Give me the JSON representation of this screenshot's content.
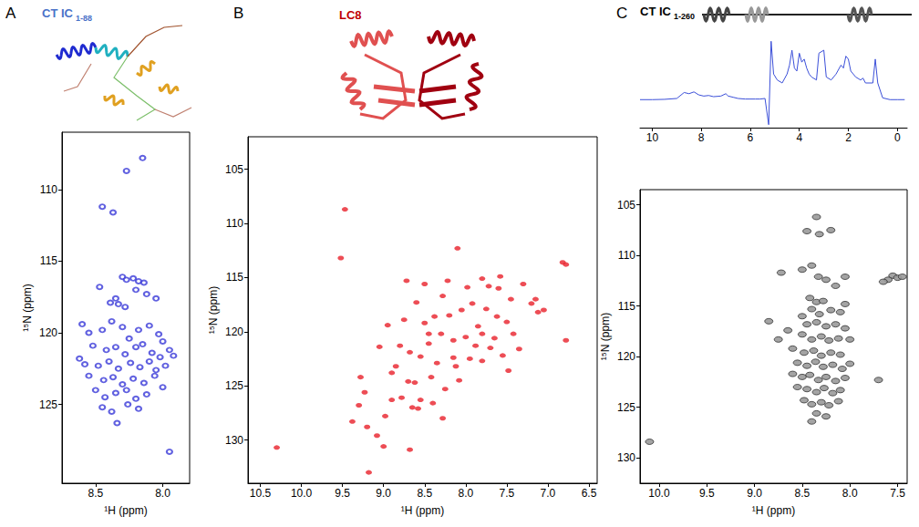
{
  "chart_data": [
    {
      "panel": "A",
      "type": "scatter",
      "title": "CT IC",
      "title_subscript": "1-88",
      "color": "#3a3ad8",
      "marker": "open_circle",
      "grid": false,
      "x_label": "¹H (ppm)",
      "y_label": "¹⁵N (ppm)",
      "xlim": [
        8.75,
        7.8
      ],
      "xticks": [
        8.5,
        {
          "value": 8,
          "label": "8.0"
        }
      ],
      "ylim": [
        130.5,
        106
      ],
      "yticks": [
        110,
        115,
        120,
        125
      ],
      "x": [
        8.15,
        8.27,
        8.45,
        8.37,
        8.3,
        8.27,
        8.22,
        8.18,
        8.14,
        8.35,
        8.33,
        8.28,
        8.39,
        8.2,
        8.12,
        8.05,
        8.47,
        8.6,
        8.55,
        8.45,
        8.38,
        8.3,
        8.25,
        8.18,
        8.1,
        8.03,
        8.0,
        7.95,
        8.52,
        8.42,
        8.35,
        8.28,
        8.2,
        8.15,
        8.08,
        8.02,
        7.92,
        8.58,
        8.48,
        8.4,
        8.33,
        8.24,
        8.17,
        8.1,
        8.05,
        7.98,
        8.55,
        8.44,
        8.37,
        8.3,
        8.22,
        8.14,
        8.06,
        8.0,
        8.5,
        8.43,
        8.35,
        8.27,
        8.2,
        8.12,
        8.45,
        8.38,
        8.26,
        8.18,
        8.34,
        7.95,
        8.62
      ],
      "values": [
        107.8,
        108.7,
        111.2,
        111.6,
        116.1,
        116.3,
        116.2,
        116.4,
        116.5,
        117.6,
        118.0,
        118.2,
        117.9,
        117.0,
        117.3,
        117.6,
        116.8,
        119.4,
        120.0,
        119.8,
        119.2,
        119.6,
        120.4,
        119.8,
        119.5,
        120.1,
        120.6,
        121.2,
        120.9,
        121.2,
        121.0,
        121.5,
        121.0,
        120.8,
        121.4,
        121.7,
        121.6,
        122.2,
        122.3,
        122.0,
        122.5,
        122.1,
        122.4,
        122.0,
        122.6,
        122.3,
        123.0,
        123.3,
        123.1,
        123.6,
        123.2,
        123.5,
        123.0,
        123.8,
        124.0,
        124.5,
        124.2,
        124.0,
        124.6,
        124.3,
        125.2,
        125.5,
        125.0,
        125.3,
        126.3,
        128.3,
        121.8
      ]
    },
    {
      "panel": "B",
      "type": "scatter",
      "title": "LC8",
      "color": "#e8202a",
      "marker": "circle",
      "grid": false,
      "x_label": "¹H (ppm)",
      "y_label": "¹⁵N (ppm)",
      "xlim": [
        10.65,
        6.4
      ],
      "xticks": [
        10.5,
        {
          "value": 10,
          "label": "10.0"
        },
        9.5,
        {
          "value": 9,
          "label": "9.0"
        },
        8.5,
        {
          "value": 8,
          "label": "8.0"
        },
        7.5,
        {
          "value": 7,
          "label": "7.0"
        },
        6.5
      ],
      "ylim": [
        134,
        102
      ],
      "yticks": [
        105,
        110,
        115,
        120,
        125,
        130
      ],
      "x": [
        10.3,
        9.47,
        9.52,
        9.28,
        9.3,
        9.23,
        9.38,
        9.18,
        9.2,
        9.08,
        9.05,
        9.0,
        8.95,
        8.9,
        8.85,
        8.8,
        8.75,
        8.72,
        8.7,
        8.68,
        8.62,
        8.58,
        8.55,
        8.55,
        8.5,
        8.5,
        8.45,
        8.42,
        8.38,
        8.35,
        8.3,
        8.28,
        8.28,
        8.22,
        8.2,
        8.15,
        8.12,
        8.1,
        8.05,
        8.0,
        7.98,
        7.95,
        7.92,
        7.88,
        7.85,
        7.8,
        7.8,
        7.75,
        7.72,
        7.7,
        7.65,
        7.62,
        7.58,
        7.55,
        7.5,
        7.48,
        7.45,
        7.42,
        7.35,
        7.3,
        7.2,
        7.15,
        7.12,
        7.05,
        6.82,
        6.78,
        6.78,
        8.65,
        8.9,
        8.98,
        8.4,
        8.25,
        8.6,
        7.8,
        8.15,
        8.45,
        8.68,
        8.78,
        8.08,
        7.6
      ],
      "values": [
        130.7,
        108.7,
        113.2,
        124.2,
        126.8,
        125.6,
        128.3,
        133.0,
        128.8,
        129.6,
        121.4,
        130.6,
        119.4,
        123.8,
        123.2,
        121.3,
        118.9,
        115.3,
        124.6,
        130.9,
        124.7,
        127.1,
        122.3,
        126.3,
        119.2,
        115.6,
        121.1,
        124.2,
        118.6,
        122.9,
        120.2,
        116.7,
        128.0,
        115.3,
        118.5,
        120.8,
        123.2,
        112.3,
        118.0,
        120.5,
        115.9,
        122.5,
        117.4,
        121.3,
        119.5,
        120.2,
        122.7,
        117.9,
        115.8,
        121.5,
        120.6,
        118.6,
        114.9,
        122.2,
        119.1,
        123.6,
        117.0,
        120.2,
        121.6,
        115.6,
        117.4,
        117.0,
        118.2,
        118.0,
        113.6,
        113.8,
        120.8,
        127.0,
        126.3,
        127.8,
        126.6,
        125.3,
        117.3,
        115.1,
        122.4,
        120.2,
        121.9,
        126.1,
        124.5,
        116.0
      ]
    },
    {
      "panel": "C",
      "type": "line",
      "title": "CT IC",
      "title_subscript": "1-260",
      "color": "#3b4fd8",
      "line_style": "solid",
      "grid": false,
      "tick_labels": "x",
      "xlim": [
        10.5,
        -0.4
      ],
      "xticks": [
        10,
        8,
        6,
        4,
        2,
        0
      ],
      "ylim": [
        -45,
        105
      ],
      "x": [
        10.5,
        10,
        9.5,
        9,
        8.7,
        8.5,
        8.3,
        8.1,
        7.9,
        7.7,
        7.5,
        7.2,
        7.0,
        6.9,
        6.7,
        6.5,
        6.2,
        6.0,
        5.8,
        5.6,
        5.4,
        5.25,
        5.15,
        5.05,
        4.9,
        4.7,
        4.5,
        4.4,
        4.3,
        4.2,
        4.1,
        4.0,
        3.9,
        3.8,
        3.7,
        3.6,
        3.5,
        3.3,
        3.2,
        3.0,
        2.9,
        2.7,
        2.5,
        2.3,
        2.2,
        2.1,
        2.0,
        1.9,
        1.7,
        1.5,
        1.4,
        1.3,
        1.0,
        0.9,
        0.8,
        0.6,
        0.3,
        0,
        -0.3
      ],
      "values": [
        2,
        2,
        2.5,
        4,
        14,
        12,
        15,
        10,
        8,
        9,
        7,
        8,
        12,
        8,
        6,
        4,
        3,
        3,
        3,
        3,
        4,
        -40,
        100,
        45,
        35,
        30,
        45,
        60,
        85,
        55,
        50,
        80,
        65,
        70,
        55,
        45,
        40,
        35,
        80,
        85,
        40,
        35,
        45,
        60,
        55,
        75,
        70,
        50,
        40,
        35,
        38,
        30,
        30,
        70,
        30,
        5,
        2,
        2,
        2
      ]
    },
    {
      "type": "scatter",
      "color": "#9a9a9a",
      "marker": "contour",
      "grid": false,
      "x_label": "¹H (ppm)",
      "y_label": "¹⁵N (ppm)",
      "xlim": [
        10.2,
        7.4
      ],
      "xticks": [
        {
          "value": 10,
          "label": "10.0"
        },
        9.5,
        {
          "value": 9,
          "label": "9.0"
        },
        8.5,
        {
          "value": 8,
          "label": "8.0"
        },
        7.5
      ],
      "ylim": [
        132.5,
        103.5
      ],
      "yticks": [
        105,
        110,
        115,
        120,
        125,
        130
      ],
      "x": [
        8.35,
        8.45,
        8.32,
        8.2,
        8.72,
        8.5,
        8.4,
        8.33,
        8.25,
        8.05,
        8.15,
        8.42,
        8.35,
        8.28,
        8.4,
        8.32,
        8.2,
        8.1,
        8.5,
        8.45,
        8.35,
        8.25,
        8.15,
        8.05,
        8.65,
        8.5,
        8.4,
        8.3,
        8.22,
        8.12,
        8.0,
        8.75,
        8.6,
        8.48,
        8.38,
        8.3,
        8.2,
        8.1,
        8.55,
        8.45,
        8.36,
        8.28,
        8.18,
        8.08,
        8.0,
        8.6,
        8.5,
        8.42,
        8.33,
        8.25,
        8.15,
        8.05,
        7.7,
        8.55,
        8.45,
        8.35,
        8.27,
        8.18,
        8.1,
        8.48,
        8.4,
        8.3,
        8.22,
        8.12,
        8.35,
        8.25,
        8.4,
        10.1,
        7.55,
        7.6,
        7.5,
        7.65,
        7.45,
        8.85,
        8.05
      ],
      "values": [
        106.2,
        107.6,
        107.9,
        107.5,
        111.7,
        111.4,
        111.0,
        112.1,
        112.4,
        112.1,
        113.0,
        114.2,
        114.6,
        114.5,
        115.3,
        115.8,
        115.4,
        115.6,
        116.0,
        116.8,
        116.6,
        117.0,
        116.8,
        117.2,
        117.4,
        117.8,
        118.3,
        118.0,
        118.4,
        118.2,
        118.3,
        118.3,
        119.2,
        119.6,
        119.4,
        119.9,
        119.6,
        119.8,
        120.6,
        120.9,
        120.5,
        121.0,
        120.8,
        121.2,
        120.7,
        121.7,
        122.0,
        121.8,
        122.3,
        122.0,
        122.4,
        122.1,
        122.3,
        123.0,
        123.2,
        123.5,
        123.1,
        123.6,
        123.3,
        124.3,
        124.7,
        124.5,
        124.8,
        124.4,
        125.6,
        125.9,
        126.4,
        128.4,
        112.0,
        112.4,
        112.2,
        112.6,
        112.1,
        116.5,
        114.8
      ]
    }
  ]
}
